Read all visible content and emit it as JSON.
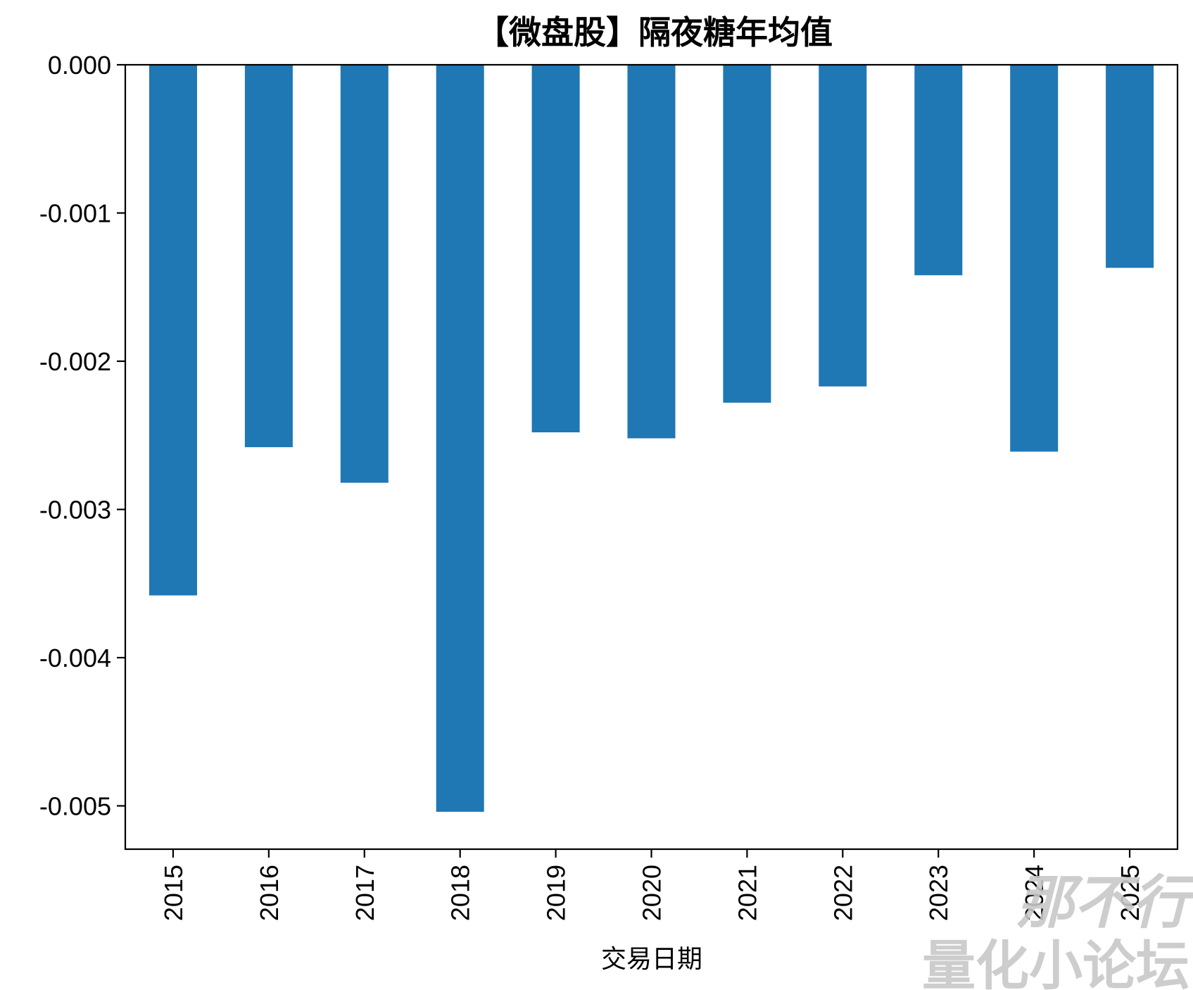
{
  "chart_data": {
    "type": "bar",
    "title": "【微盘股】隔夜糖年均值",
    "xlabel": "交易日期",
    "ylabel": "",
    "categories": [
      "2015",
      "2016",
      "2017",
      "2018",
      "2019",
      "2020",
      "2021",
      "2022",
      "2023",
      "2024",
      "2025"
    ],
    "values": [
      -0.00358,
      -0.00258,
      -0.00282,
      -0.00504,
      -0.00248,
      -0.00252,
      -0.00228,
      -0.00217,
      -0.00142,
      -0.00261,
      -0.00137
    ],
    "ylim": [
      -0.0053,
      0.0
    ],
    "yticks": [
      "0.000",
      "-0.001",
      "-0.002",
      "-0.003",
      "-0.004",
      "-0.005"
    ],
    "ytick_values": [
      0.0,
      -0.001,
      -0.002,
      -0.003,
      -0.004,
      -0.005
    ],
    "grid": false,
    "legend": "none",
    "bar_color": "#1f77b4"
  },
  "watermark": {
    "line1": "那不行",
    "line2": "量化小论坛"
  }
}
